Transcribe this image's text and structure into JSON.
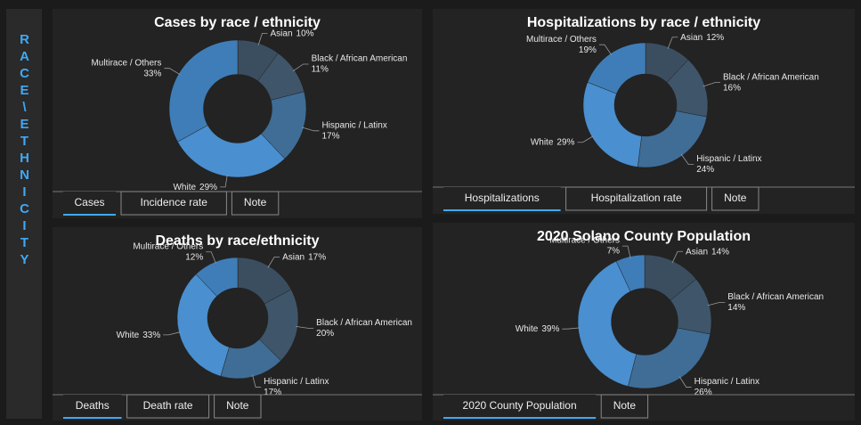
{
  "sidebar": {
    "label": "RACE\\ETHNICITY"
  },
  "chart_data": [
    {
      "type": "pie",
      "title": "Cases by race / ethnicity",
      "categories": [
        "Asian",
        "Black / African American",
        "Hispanic / Latinx",
        "White",
        "Multirace / Others"
      ],
      "values": [
        10,
        11,
        17,
        29,
        33
      ],
      "value_labels": [
        "10%",
        "11%",
        "17%",
        "29%",
        "33%"
      ],
      "colors": [
        "#3b4e60",
        "#3f5569",
        "#3f6d96",
        "#4a8fcf",
        "#3f7db8"
      ]
    },
    {
      "type": "pie",
      "title": "Hospitalizations by race / ethnicity",
      "categories": [
        "Asian",
        "Black / African American",
        "Hispanic / Latinx",
        "White",
        "Multirace / Others"
      ],
      "values": [
        12,
        16,
        24,
        29,
        19
      ],
      "value_labels": [
        "12%",
        "16%",
        "24%",
        "29%",
        "19%"
      ],
      "colors": [
        "#3b4e60",
        "#3f5569",
        "#3f6d96",
        "#4a8fcf",
        "#3f7db8"
      ]
    },
    {
      "type": "pie",
      "title": "Deaths by race/ethnicity",
      "categories": [
        "Asian",
        "Black / African American",
        "Hispanic / Latinx",
        "White",
        "Multirace / Others"
      ],
      "values": [
        17,
        20,
        17,
        33,
        12
      ],
      "value_labels": [
        "17%",
        "20%",
        "17%",
        "33%",
        "12%"
      ],
      "colors": [
        "#3b4e60",
        "#3f5569",
        "#3f6d96",
        "#4a8fcf",
        "#3f7db8"
      ]
    },
    {
      "type": "pie",
      "title": "2020 Solano County Population",
      "categories": [
        "Asian",
        "Black / African American",
        "Hispanic / Latinx",
        "White",
        "Multirace / Others"
      ],
      "values": [
        14,
        14,
        26,
        39,
        7
      ],
      "value_labels": [
        "14%",
        "14%",
        "26%",
        "39%",
        "7%"
      ],
      "colors": [
        "#3b4e60",
        "#3f5569",
        "#3f6d96",
        "#4a8fcf",
        "#3f7db8"
      ]
    }
  ],
  "panels": [
    {
      "tabs": [
        "Cases",
        "Incidence rate",
        "Note"
      ],
      "active": 0
    },
    {
      "tabs": [
        "Hospitalizations",
        "Hospitalization rate",
        "Note"
      ],
      "active": 0
    },
    {
      "tabs": [
        "Deaths",
        "Death rate",
        "Note"
      ],
      "active": 0
    },
    {
      "tabs": [
        "2020 County Population",
        "Note"
      ],
      "active": 0
    }
  ]
}
